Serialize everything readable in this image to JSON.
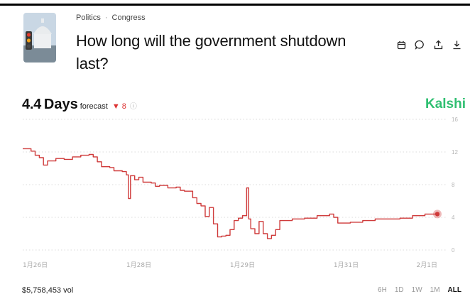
{
  "breadcrumb": {
    "category": "Politics",
    "separator": "·",
    "subcategory": "Congress"
  },
  "market": {
    "title": "How long will the government shutdown last?"
  },
  "actions": [
    {
      "name": "calendar-icon"
    },
    {
      "name": "comment-icon"
    },
    {
      "name": "share-icon"
    },
    {
      "name": "download-icon"
    }
  ],
  "forecast": {
    "value": "4.4",
    "unit": "Days",
    "label": "forecast",
    "delta": "▼ 8",
    "info": "ⓘ"
  },
  "brand": "Kalshi",
  "footer": {
    "volume": "$5,758,453 vol",
    "ranges": [
      "6H",
      "1D",
      "1W",
      "1M",
      "ALL"
    ],
    "active_range": "ALL"
  },
  "colors": {
    "line": "#cf3a3a",
    "brand": "#2fbf71",
    "grid": "#cfcfcf"
  },
  "chart_data": {
    "type": "line",
    "y_ticks": [
      "16",
      "12",
      "8",
      "4",
      "0"
    ],
    "x_ticks": [
      "1月26日",
      "1月28日",
      "1月29日",
      "1月31日",
      "2月1日"
    ],
    "ylim": [
      0,
      16
    ],
    "x_range": [
      0,
      100
    ],
    "x_tick_positions": [
      4,
      28,
      53,
      78,
      100
    ],
    "series": [
      {
        "points": [
          [
            0,
            12.4
          ],
          [
            2,
            12.1
          ],
          [
            3,
            11.6
          ],
          [
            4,
            11.3
          ],
          [
            5,
            10.4
          ],
          [
            6,
            10.9
          ],
          [
            8,
            11.2
          ],
          [
            10,
            11.1
          ],
          [
            12,
            11.4
          ],
          [
            14,
            11.6
          ],
          [
            16,
            11.7
          ],
          [
            17,
            11.4
          ],
          [
            18,
            10.8
          ],
          [
            19,
            10.2
          ],
          [
            21,
            10.1
          ],
          [
            22,
            9.7
          ],
          [
            24,
            9.6
          ],
          [
            25,
            9.2
          ],
          [
            25.5,
            6.3
          ],
          [
            26,
            9.1
          ],
          [
            27,
            8.6
          ],
          [
            28,
            8.9
          ],
          [
            29,
            8.3
          ],
          [
            31,
            8.2
          ],
          [
            32,
            7.8
          ],
          [
            33,
            7.9
          ],
          [
            35,
            7.6
          ],
          [
            37,
            7.7
          ],
          [
            38,
            7.3
          ],
          [
            39,
            7.2
          ],
          [
            41,
            6.4
          ],
          [
            42,
            5.7
          ],
          [
            43,
            5.4
          ],
          [
            44,
            4.1
          ],
          [
            45,
            5.2
          ],
          [
            46,
            3.2
          ],
          [
            47,
            1.6
          ],
          [
            48,
            1.7
          ],
          [
            49,
            1.8
          ],
          [
            50,
            2.5
          ],
          [
            51,
            3.6
          ],
          [
            52,
            3.9
          ],
          [
            53,
            4.2
          ],
          [
            54,
            7.6
          ],
          [
            54.5,
            3.8
          ],
          [
            55,
            2.6
          ],
          [
            56,
            2.0
          ],
          [
            57,
            3.5
          ],
          [
            58,
            2.0
          ],
          [
            59,
            1.4
          ],
          [
            60,
            1.8
          ],
          [
            61,
            2.5
          ],
          [
            62,
            3.6
          ],
          [
            65,
            3.8
          ],
          [
            68,
            3.9
          ],
          [
            71,
            4.2
          ],
          [
            74,
            4.4
          ],
          [
            75,
            4.0
          ],
          [
            76,
            3.3
          ],
          [
            79,
            3.4
          ],
          [
            82,
            3.6
          ],
          [
            85,
            3.8
          ],
          [
            88,
            3.8
          ],
          [
            91,
            3.9
          ],
          [
            94,
            4.2
          ],
          [
            97,
            4.4
          ],
          [
            100,
            4.4
          ]
        ]
      }
    ]
  }
}
